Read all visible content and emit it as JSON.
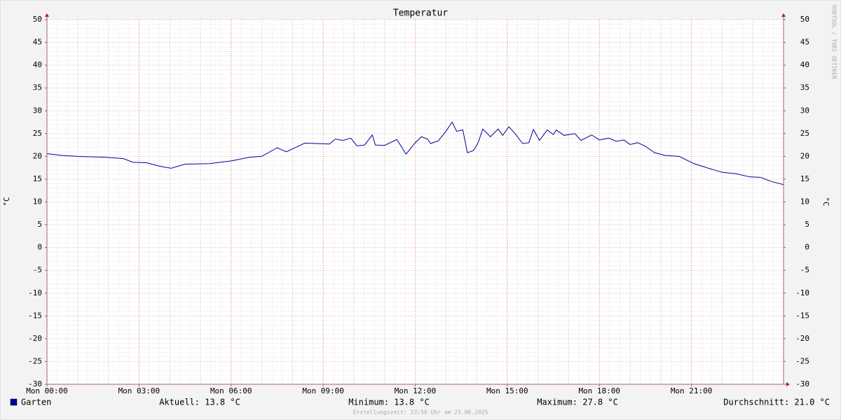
{
  "chart_data": {
    "type": "line",
    "title": "Temperatur",
    "ylabel": "°C",
    "watermark": "RRDTOOL / TOBI OETIKER",
    "footer": "Erstellungszeit: 23:58 Uhr am 23.06.2025",
    "xlim": [
      0,
      24
    ],
    "xticks": [
      {
        "value": 0,
        "label": "Mon 00:00"
      },
      {
        "value": 3,
        "label": "Mon 03:00"
      },
      {
        "value": 6,
        "label": "Mon 06:00"
      },
      {
        "value": 9,
        "label": "Mon 09:00"
      },
      {
        "value": 12,
        "label": "Mon 12:00"
      },
      {
        "value": 15,
        "label": "Mon 15:00"
      },
      {
        "value": 18,
        "label": "Mon 18:00"
      },
      {
        "value": 21,
        "label": "Mon 21:00"
      }
    ],
    "ylim": [
      -30,
      50
    ],
    "yticks": [
      -30,
      -25,
      -20,
      -15,
      -10,
      -5,
      0,
      5,
      10,
      15,
      20,
      25,
      30,
      35,
      40,
      45,
      50
    ],
    "grid": true,
    "x": [
      0,
      0.5,
      1.0,
      1.9,
      2.5,
      2.8,
      3.25,
      3.7,
      4.05,
      4.5,
      5.3,
      6.0,
      6.6,
      7.0,
      7.5,
      7.8,
      8.4,
      9.2,
      9.4,
      9.65,
      9.9,
      10.1,
      10.35,
      10.6,
      10.7,
      11.0,
      11.4,
      11.7,
      12.0,
      12.2,
      12.4,
      12.5,
      12.75,
      13.0,
      13.2,
      13.35,
      13.55,
      13.7,
      13.9,
      14.05,
      14.2,
      14.45,
      14.7,
      14.85,
      15.05,
      15.25,
      15.5,
      15.7,
      15.85,
      16.05,
      16.3,
      16.5,
      16.6,
      16.85,
      17.2,
      17.4,
      17.75,
      18.0,
      18.3,
      18.55,
      18.8,
      19.0,
      19.25,
      19.5,
      19.8,
      20.15,
      20.6,
      21.05,
      21.5,
      22.0,
      22.45,
      22.9,
      23.25,
      23.6,
      24.0
    ],
    "series": [
      {
        "name": "Garten",
        "color": "#000099",
        "values": [
          20.6,
          20.2,
          20.0,
          19.8,
          19.5,
          18.7,
          18.6,
          17.8,
          17.4,
          18.3,
          18.4,
          19.0,
          19.8,
          20.0,
          21.9,
          21.0,
          22.9,
          22.7,
          23.8,
          23.5,
          24.0,
          22.3,
          22.5,
          24.7,
          22.5,
          22.4,
          23.7,
          20.5,
          23.0,
          24.3,
          23.8,
          22.8,
          23.4,
          25.5,
          27.5,
          25.5,
          25.8,
          20.8,
          21.3,
          23.0,
          26.0,
          24.3,
          26.0,
          24.6,
          26.5,
          25.0,
          22.8,
          23.0,
          25.9,
          23.5,
          25.8,
          24.8,
          25.8,
          24.6,
          25.0,
          23.5,
          24.7,
          23.6,
          24.0,
          23.3,
          23.6,
          22.6,
          23.0,
          22.2,
          20.8,
          20.2,
          20.0,
          18.5,
          17.5,
          16.5,
          16.2,
          15.5,
          15.4,
          14.5,
          13.8
        ]
      }
    ],
    "stats": [
      "Aktuell: 13.8 °C",
      "Minimum: 13.8 °C",
      "Maximum: 27.8 °C",
      "Durchschnitt: 21.0 °C"
    ]
  }
}
